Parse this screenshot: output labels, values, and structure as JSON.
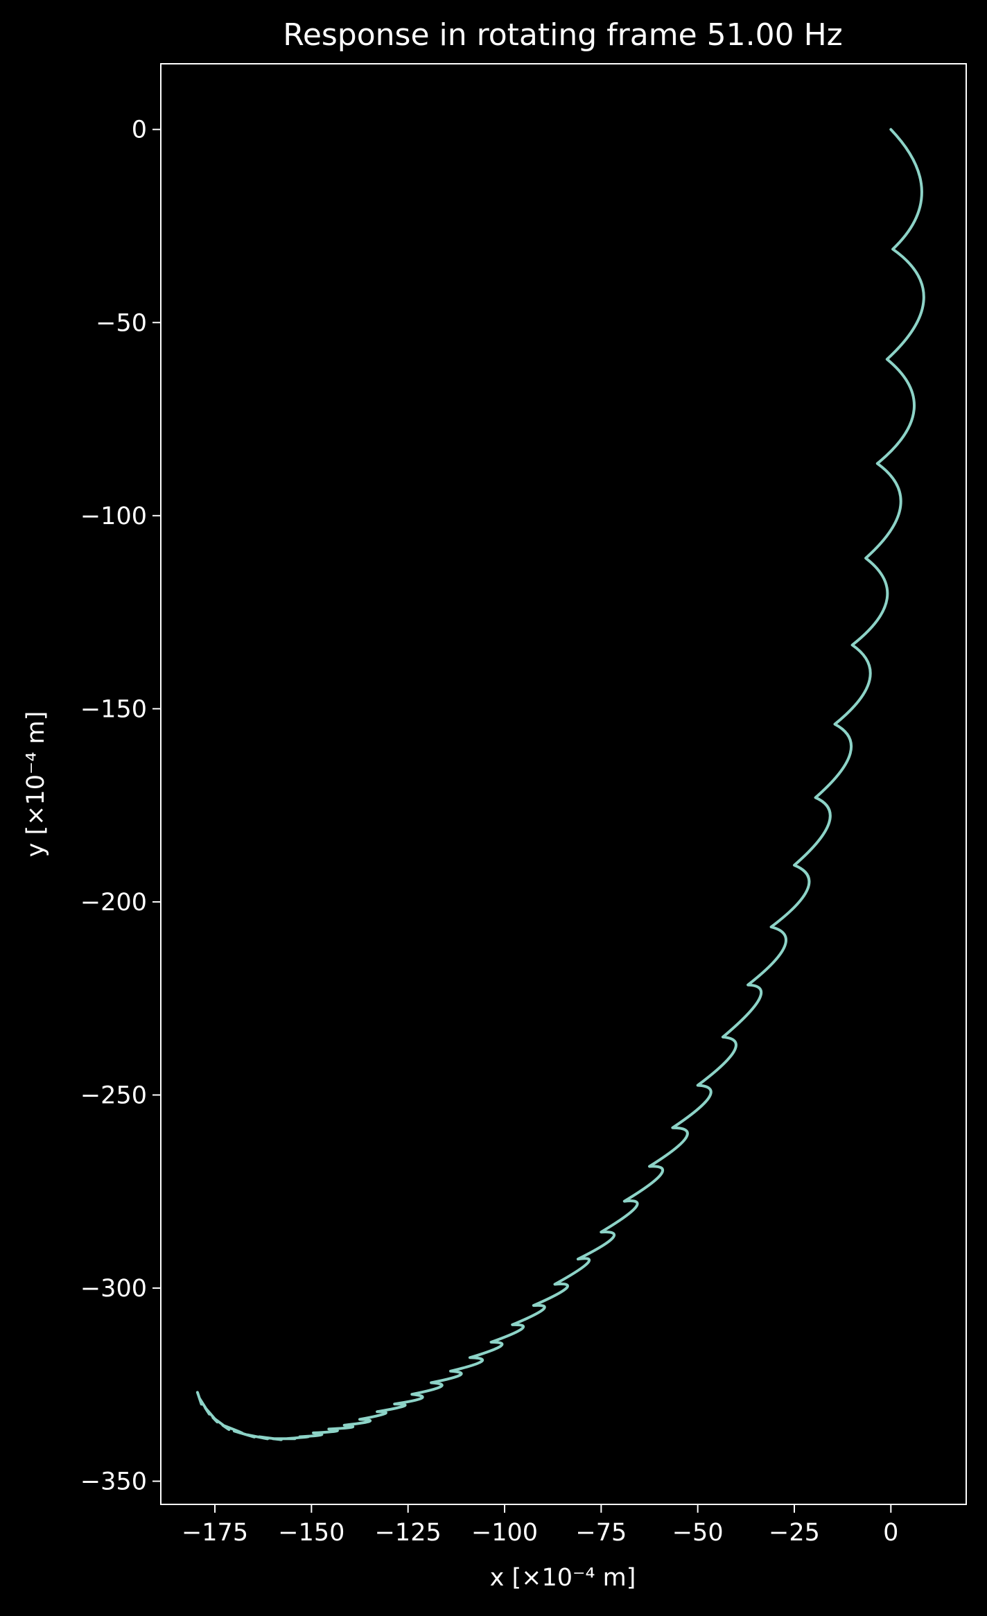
{
  "chart_data": {
    "type": "line",
    "title": "Response in rotating frame 51.00 Hz",
    "xlabel": "x [×10⁻⁴ m]",
    "ylabel": "y [×10⁻⁴ m]",
    "xlim": [
      -189,
      19.5
    ],
    "ylim": [
      -356,
      17
    ],
    "xticks": [
      -175,
      -150,
      -125,
      -100,
      -75,
      -50,
      -25,
      0
    ],
    "xtick_labels": [
      "−175",
      "−150",
      "−125",
      "−100",
      "−75",
      "−50",
      "−25",
      "0"
    ],
    "yticks": [
      0,
      -50,
      -100,
      -150,
      -200,
      -250,
      -300,
      -350
    ],
    "ytick_labels": [
      "0",
      "−50",
      "−100",
      "−150",
      "−200",
      "−250",
      "−300",
      "−350"
    ],
    "grid": false,
    "line_color": "#8dd3c7",
    "background": "#000000",
    "cusps": [
      [
        0,
        0
      ],
      [
        0.5,
        -31
      ],
      [
        -1,
        -59.5
      ],
      [
        -3.5,
        -86.5
      ],
      [
        -6.5,
        -111
      ],
      [
        -10,
        -133.5
      ],
      [
        -14.5,
        -154
      ],
      [
        -19.5,
        -173
      ],
      [
        -25,
        -190.5
      ],
      [
        -31,
        -206.5
      ],
      [
        -37,
        -221.5
      ],
      [
        -43.5,
        -235
      ],
      [
        -50,
        -247.5
      ],
      [
        -56.5,
        -258.5
      ],
      [
        -62.5,
        -268.5
      ],
      [
        -69,
        -277.5
      ],
      [
        -75,
        -285.5
      ],
      [
        -81,
        -292.5
      ],
      [
        -87,
        -299
      ],
      [
        -92.5,
        -304.5
      ],
      [
        -98,
        -309.5
      ],
      [
        -103.5,
        -314
      ],
      [
        -109,
        -318
      ],
      [
        -114,
        -321.5
      ],
      [
        -119,
        -324.5
      ],
      [
        -124,
        -327.5
      ],
      [
        -128.5,
        -330
      ],
      [
        -133,
        -332
      ],
      [
        -137.5,
        -334
      ],
      [
        -141.5,
        -335.5
      ],
      [
        -145.5,
        -336.5
      ],
      [
        -149.5,
        -337.5
      ],
      [
        -153,
        -338.5
      ],
      [
        -156.5,
        -339
      ],
      [
        -160,
        -339
      ],
      [
        -163.5,
        -338.5
      ],
      [
        -166.5,
        -338
      ],
      [
        -170,
        -337
      ],
      [
        -173,
        -335.5
      ],
      [
        -175.5,
        -333.5
      ],
      [
        -177.5,
        -331
      ],
      [
        -179,
        -328.5
      ],
      [
        -179.5,
        -327
      ]
    ],
    "bulges": [
      [
        8,
        -16
      ],
      [
        8.5,
        -44
      ],
      [
        6,
        -72.5
      ],
      [
        2.5,
        -97.5
      ],
      [
        -1,
        -121.5
      ],
      [
        -5.5,
        -142.5
      ],
      [
        -10.5,
        -161.5
      ],
      [
        -16,
        -179.5
      ],
      [
        -21.5,
        -196.5
      ],
      [
        -27.5,
        -211.5
      ],
      [
        -34,
        -225
      ],
      [
        -40.5,
        -238.5
      ],
      [
        -47,
        -250.5
      ],
      [
        -53,
        -261
      ],
      [
        -59.5,
        -270.5
      ],
      [
        -66,
        -279
      ],
      [
        -72,
        -287
      ],
      [
        -78.5,
        -293.5
      ],
      [
        -84,
        -300
      ],
      [
        -90,
        -305.5
      ],
      [
        -95.5,
        -310.5
      ],
      [
        -101,
        -315
      ],
      [
        -106,
        -319
      ],
      [
        -111.5,
        -322.5
      ],
      [
        -116.5,
        -325.5
      ],
      [
        -121.5,
        -328.5
      ],
      [
        -126,
        -330.5
      ],
      [
        -131,
        -332.5
      ],
      [
        -135,
        -334.5
      ],
      [
        -139.5,
        -336
      ],
      [
        -143.5,
        -337
      ],
      [
        -147.5,
        -338
      ],
      [
        -151,
        -338.5
      ],
      [
        -154.5,
        -339
      ],
      [
        -158,
        -339.2
      ],
      [
        -161.5,
        -339
      ],
      [
        -165,
        -338.5
      ],
      [
        -168,
        -337.5
      ],
      [
        -171.5,
        -336.5
      ],
      [
        -174.5,
        -334.5
      ],
      [
        -176.5,
        -332.5
      ],
      [
        -178.5,
        -330
      ]
    ]
  }
}
